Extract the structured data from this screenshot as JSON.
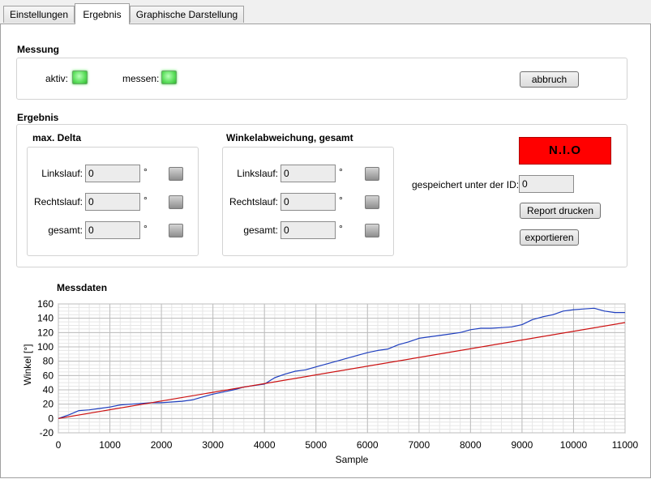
{
  "tabs": [
    {
      "label": "Einstellungen",
      "active": false
    },
    {
      "label": "Ergebnis",
      "active": true
    },
    {
      "label": "Graphische Darstellung",
      "active": false
    }
  ],
  "messung": {
    "title": "Messung",
    "aktiv_label": "aktiv:",
    "messen_label": "messen:",
    "abbruch_label": "abbruch"
  },
  "ergebnis": {
    "title": "Ergebnis",
    "max_delta": {
      "title": "max. Delta",
      "rows": [
        {
          "label": "Linkslauf:",
          "value": "0",
          "unit": "°"
        },
        {
          "label": "Rechtslauf:",
          "value": "0",
          "unit": "°"
        },
        {
          "label": "gesamt:",
          "value": "0",
          "unit": "°"
        }
      ]
    },
    "winkel": {
      "title": "Winkelabweichung, gesamt",
      "rows": [
        {
          "label": "Linkslauf:",
          "value": "0",
          "unit": "°"
        },
        {
          "label": "Rechtslauf:",
          "value": "0",
          "unit": "°"
        },
        {
          "label": "gesamt:",
          "value": "0",
          "unit": "°"
        }
      ]
    },
    "status": "N.I.O",
    "status_color": "#ff0000",
    "id_label": "gespeichert unter der ID:",
    "id_value": "0",
    "report_label": "Report drucken",
    "export_label": "exportieren"
  },
  "chart_data": {
    "type": "line",
    "title": "Messdaten",
    "xlabel": "Sample",
    "ylabel": "Winkel [°]",
    "xlim": [
      0,
      11000
    ],
    "ylim": [
      -20,
      160
    ],
    "xticks": [
      0,
      1000,
      2000,
      3000,
      4000,
      5000,
      6000,
      7000,
      8000,
      9000,
      10000,
      11000
    ],
    "yticks": [
      -20,
      0,
      20,
      40,
      60,
      80,
      100,
      120,
      140,
      160
    ],
    "grid": true,
    "series": [
      {
        "color": "#1f3fbf",
        "x": [
          0,
          200,
          400,
          600,
          800,
          1000,
          1200,
          1400,
          1600,
          1800,
          2000,
          2200,
          2400,
          2600,
          2800,
          3000,
          3200,
          3400,
          3600,
          3800,
          4000,
          4200,
          4400,
          4600,
          4800,
          5000,
          5200,
          5400,
          5600,
          5800,
          6000,
          6200,
          6400,
          6600,
          6800,
          7000,
          7200,
          7400,
          7600,
          7800,
          8000,
          8200,
          8400,
          8600,
          8800,
          9000,
          9200,
          9400,
          9600,
          9800,
          10000,
          10200,
          10400,
          10600,
          10800,
          11000
        ],
        "y": [
          0,
          5,
          11,
          12,
          14,
          16,
          19,
          20,
          21,
          22,
          22,
          23,
          24,
          26,
          30,
          34,
          37,
          40,
          44,
          46,
          48,
          57,
          62,
          66,
          68,
          72,
          76,
          80,
          84,
          88,
          92,
          95,
          97,
          103,
          107,
          112,
          114,
          116,
          118,
          120,
          124,
          126,
          126,
          127,
          128,
          131,
          138,
          142,
          145,
          150,
          152,
          153,
          154,
          150,
          148,
          148
        ]
      },
      {
        "color": "#cc1111",
        "x": [
          0,
          11000
        ],
        "y": [
          0,
          134
        ]
      }
    ]
  }
}
